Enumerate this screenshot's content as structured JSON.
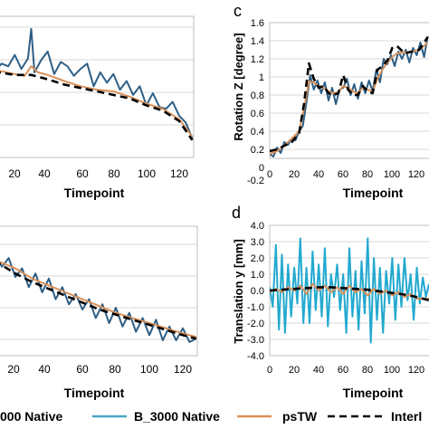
{
  "legend": {
    "entries": [
      {
        "label": "000 Native",
        "color": "#2e5f86",
        "style": "solid"
      },
      {
        "label": "B_3000 Native",
        "color": "#4aa6c6",
        "style": "solid"
      },
      {
        "label": "psTW",
        "color": "#d9915a",
        "style": "solid"
      },
      {
        "label": "Interl",
        "color": "#000000",
        "style": "dashed"
      }
    ]
  },
  "colors": {
    "dark_blue": "#2e5f86",
    "light_blue": "#22a9cf",
    "orange": "#d9915a",
    "black": "#000000",
    "grid": "#d9d9d9"
  },
  "chart_data": [
    {
      "id": "top-left",
      "type": "line",
      "panel_label": "",
      "xlabel": "Timepoint",
      "ylabel": "",
      "x_ticks": [
        "20",
        "40",
        "60",
        "80",
        "100",
        "120"
      ],
      "y_ticks": [],
      "series": [
        {
          "name": "",
          "color": "#2e5f86",
          "dashed": false,
          "x": [
            0,
            4,
            8,
            12,
            16,
            20,
            24,
            28,
            30,
            32,
            36,
            40,
            44,
            48,
            52,
            56,
            60,
            64,
            68,
            72,
            76,
            80,
            84,
            88,
            92,
            96,
            100,
            104,
            108,
            112,
            116,
            120,
            124,
            128
          ],
          "y": [
            1.2,
            1.12,
            1.0,
            1.08,
            1.05,
            1.18,
            1.02,
            1.14,
            1.48,
            0.98,
            1.12,
            1.22,
            0.96,
            1.1,
            1.05,
            0.94,
            1.02,
            1.08,
            0.82,
            0.98,
            0.86,
            0.96,
            0.78,
            0.88,
            0.72,
            0.82,
            0.6,
            0.74,
            0.58,
            0.56,
            0.64,
            0.48,
            0.4,
            0.22
          ]
        },
        {
          "name": "",
          "color": "#d9915a",
          "dashed": false,
          "x": [
            0,
            10,
            20,
            26,
            30,
            34,
            40,
            50,
            60,
            70,
            80,
            90,
            100,
            110,
            120,
            128
          ],
          "y": [
            1.02,
            1.0,
            0.96,
            0.94,
            1.05,
            0.98,
            0.95,
            0.88,
            0.82,
            0.78,
            0.76,
            0.7,
            0.62,
            0.56,
            0.44,
            0.24
          ]
        },
        {
          "name": "",
          "color": "#000000",
          "dashed": true,
          "x": [
            0,
            10,
            20,
            30,
            40,
            50,
            60,
            70,
            80,
            90,
            100,
            110,
            120,
            128
          ],
          "y": [
            1.0,
            0.98,
            0.95,
            0.95,
            0.9,
            0.84,
            0.8,
            0.76,
            0.72,
            0.68,
            0.6,
            0.54,
            0.42,
            0.2
          ]
        }
      ]
    },
    {
      "id": "c",
      "type": "line",
      "panel_label": "c",
      "xlabel": "Timepoint",
      "ylabel": "Rotation Z [degree]",
      "x_ticks": [
        "0",
        "20",
        "40",
        "60",
        "80",
        "100",
        "120"
      ],
      "y_ticks": [
        "-0.2",
        "0",
        "0.2",
        "0.4",
        "0.6",
        "0.8",
        "1",
        "1.2",
        "1.4",
        "1.6"
      ],
      "xlim": [
        0,
        130
      ],
      "ylim": [
        -0.2,
        1.6
      ],
      "series": [
        {
          "name": "",
          "color": "#2e5f86",
          "dashed": false,
          "x": [
            0,
            3,
            6,
            9,
            12,
            15,
            18,
            21,
            24,
            27,
            30,
            33,
            36,
            39,
            42,
            45,
            48,
            51,
            54,
            57,
            60,
            63,
            66,
            69,
            72,
            75,
            78,
            81,
            84,
            87,
            90,
            93,
            96,
            99,
            102,
            105,
            108,
            111,
            114,
            117,
            120,
            123,
            126,
            129
          ],
          "y": [
            0.05,
            0.02,
            0.12,
            0.06,
            0.18,
            0.15,
            0.22,
            0.2,
            0.3,
            0.36,
            0.62,
            0.92,
            0.76,
            0.86,
            0.72,
            0.84,
            0.64,
            0.78,
            0.6,
            0.76,
            0.78,
            0.88,
            0.7,
            0.82,
            0.66,
            0.84,
            0.72,
            0.86,
            0.74,
            0.98,
            0.84,
            1.1,
            1.04,
            1.14,
            1.02,
            1.18,
            1.1,
            1.2,
            1.06,
            1.22,
            1.14,
            1.28,
            1.12,
            1.35
          ]
        },
        {
          "name": "",
          "color": "#d9915a",
          "dashed": false,
          "x": [
            0,
            6,
            12,
            18,
            24,
            28,
            32,
            36,
            40,
            44,
            48,
            52,
            56,
            60,
            64,
            68,
            72,
            76,
            80,
            84,
            88,
            92,
            96,
            100,
            104,
            110,
            116,
            122,
            129
          ],
          "y": [
            0.05,
            0.08,
            0.14,
            0.22,
            0.3,
            0.55,
            0.85,
            0.84,
            0.8,
            0.78,
            0.74,
            0.72,
            0.73,
            0.8,
            0.78,
            0.74,
            0.72,
            0.78,
            0.76,
            0.74,
            0.88,
            0.98,
            1.06,
            1.12,
            1.16,
            1.17,
            1.18,
            1.2,
            1.28
          ]
        },
        {
          "name": "",
          "color": "#000000",
          "dashed": true,
          "x": [
            0,
            6,
            12,
            18,
            24,
            28,
            32,
            36,
            40,
            44,
            48,
            52,
            56,
            60,
            64,
            68,
            72,
            76,
            80,
            84,
            88,
            92,
            96,
            100,
            104,
            110,
            116,
            122,
            129
          ],
          "y": [
            0.08,
            0.1,
            0.14,
            0.18,
            0.28,
            0.6,
            1.05,
            0.88,
            0.78,
            0.8,
            0.72,
            0.7,
            0.72,
            0.92,
            0.76,
            0.7,
            0.7,
            0.8,
            0.74,
            0.72,
            0.98,
            1.02,
            1.08,
            1.22,
            1.24,
            1.16,
            1.18,
            1.2,
            1.34
          ]
        }
      ]
    },
    {
      "id": "bottom-left",
      "type": "line",
      "panel_label": "",
      "xlabel": "Timepoint",
      "ylabel": "",
      "x_ticks": [
        "20",
        "40",
        "60",
        "80",
        "100",
        "120"
      ],
      "y_ticks": [],
      "series": [
        {
          "name": "",
          "color": "#2e5f86",
          "dashed": false,
          "x": [
            0,
            4,
            8,
            12,
            16,
            20,
            24,
            28,
            32,
            36,
            40,
            44,
            48,
            52,
            56,
            60,
            64,
            68,
            72,
            76,
            80,
            84,
            88,
            92,
            96,
            100,
            104,
            108,
            112,
            116,
            120,
            124,
            128
          ],
          "y": [
            0.8,
            0.76,
            0.86,
            0.74,
            0.84,
            0.62,
            0.72,
            0.5,
            0.66,
            0.44,
            0.6,
            0.36,
            0.5,
            0.3,
            0.42,
            0.24,
            0.36,
            0.14,
            0.3,
            0.08,
            0.26,
            0.04,
            0.2,
            -0.02,
            0.14,
            -0.06,
            0.12,
            -0.12,
            0.04,
            -0.12,
            0.02,
            -0.14,
            -0.1
          ]
        },
        {
          "name": "",
          "color": "#d9915a",
          "dashed": false,
          "x": [
            0,
            10,
            20,
            30,
            40,
            50,
            60,
            70,
            80,
            90,
            100,
            110,
            120,
            128
          ],
          "y": [
            0.78,
            0.8,
            0.72,
            0.6,
            0.52,
            0.44,
            0.36,
            0.28,
            0.2,
            0.14,
            0.08,
            0.02,
            -0.04,
            -0.08
          ]
        },
        {
          "name": "",
          "color": "#000000",
          "dashed": true,
          "x": [
            0,
            10,
            20,
            30,
            40,
            50,
            60,
            70,
            80,
            90,
            100,
            110,
            120,
            128
          ],
          "y": [
            0.8,
            0.78,
            0.66,
            0.56,
            0.48,
            0.4,
            0.32,
            0.24,
            0.18,
            0.12,
            0.06,
            0.0,
            -0.06,
            -0.1
          ]
        }
      ]
    },
    {
      "id": "d",
      "type": "line",
      "panel_label": "d",
      "xlabel": "Timepoint",
      "ylabel": "Translation y [mm]",
      "x_ticks": [
        "0",
        "20",
        "40",
        "60",
        "80",
        "100",
        "120"
      ],
      "y_ticks": [
        "-4.0",
        "-3.0",
        "-2.0",
        "-1.0",
        "0.0",
        "1.0",
        "2.0",
        "3.0",
        "4.0"
      ],
      "xlim": [
        0,
        130
      ],
      "ylim": [
        -4.0,
        4.0
      ],
      "series": [
        {
          "name": "",
          "color": "#22a9cf",
          "dashed": false,
          "x": [
            0,
            2.5,
            5,
            7.5,
            10,
            12.5,
            15,
            17.5,
            20,
            22.5,
            25,
            27.5,
            30,
            32.5,
            35,
            37.5,
            40,
            42.5,
            45,
            47.5,
            50,
            52.5,
            55,
            57.5,
            60,
            62.5,
            65,
            67.5,
            70,
            72.5,
            75,
            77.5,
            80,
            82.5,
            85,
            87.5,
            90,
            92.5,
            95,
            97.5,
            100,
            102.5,
            105,
            107.5,
            110,
            112.5,
            115,
            117.5,
            120,
            122.5,
            125,
            127.5,
            130
          ],
          "y": [
            0.2,
            -1.0,
            2.8,
            -2.4,
            2.2,
            -2.6,
            1.6,
            -1.6,
            1.4,
            -0.8,
            3.2,
            -2.0,
            1.4,
            -2.0,
            2.4,
            -1.2,
            1.6,
            -1.6,
            2.6,
            -2.2,
            1.0,
            -0.4,
            1.6,
            -1.2,
            1.0,
            -2.6,
            2.6,
            -1.6,
            1.2,
            -2.4,
            1.8,
            -1.4,
            3.2,
            -3.2,
            2.0,
            -1.8,
            1.4,
            -2.6,
            1.2,
            -0.8,
            2.0,
            -1.8,
            1.6,
            -1.0,
            2.0,
            -0.6,
            1.0,
            -1.8,
            1.4,
            -0.8,
            0.8,
            -0.4,
            0.4
          ]
        },
        {
          "name": "",
          "color": "#d9915a",
          "dashed": false,
          "x": [
            0,
            5,
            10,
            15,
            20,
            25,
            30,
            35,
            40,
            45,
            50,
            55,
            60,
            65,
            70,
            75,
            80,
            85,
            90,
            95,
            100,
            105,
            110,
            115,
            120,
            125,
            130
          ],
          "y": [
            -0.1,
            0.1,
            -0.1,
            0.2,
            0.0,
            0.3,
            -0.2,
            0.4,
            0.0,
            0.3,
            -0.1,
            0.2,
            -0.2,
            0.3,
            -0.1,
            0.1,
            -0.3,
            0.1,
            -0.2,
            0.0,
            -0.3,
            -0.1,
            -0.4,
            -0.2,
            -0.5,
            -0.5,
            -0.5
          ]
        },
        {
          "name": "",
          "color": "#000000",
          "dashed": true,
          "x": [
            0,
            10,
            20,
            30,
            40,
            50,
            60,
            70,
            80,
            90,
            100,
            110,
            120,
            130
          ],
          "y": [
            0.0,
            0.05,
            0.1,
            0.15,
            0.2,
            0.2,
            0.15,
            0.1,
            0.05,
            -0.05,
            -0.15,
            -0.25,
            -0.4,
            -0.6
          ]
        }
      ]
    }
  ]
}
